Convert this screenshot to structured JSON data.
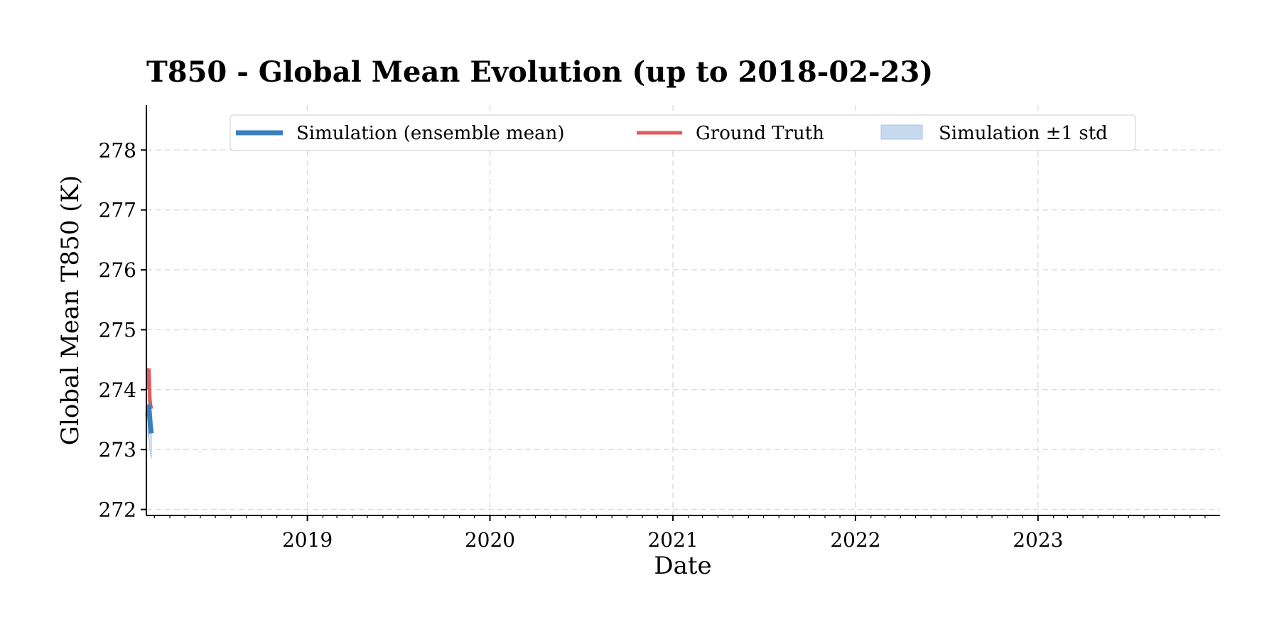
{
  "chart_data": {
    "type": "line",
    "title": "T850 - Global Mean Evolution (up to 2018-02-23)",
    "xlabel": "Date",
    "ylabel": "Global Mean T850 (K)",
    "xlim": [
      "2018-02-13",
      "2023-12-31"
    ],
    "ylim": [
      271.9,
      278.75
    ],
    "xticks": [
      "2019",
      "2020",
      "2021",
      "2022",
      "2023"
    ],
    "yticks": [
      272,
      273,
      274,
      275,
      276,
      277,
      278
    ],
    "grid": true,
    "legend": {
      "placement": "top",
      "entries": [
        "Simulation (ensemble mean)",
        "Ground Truth",
        "Simulation ±1 std"
      ]
    },
    "series": [
      {
        "name": "Simulation (ensemble mean)",
        "color": "#3a7fbd",
        "x": [
          "2018-02-16",
          "2018-02-17",
          "2018-02-18",
          "2018-02-19",
          "2018-02-20",
          "2018-02-21",
          "2018-02-22",
          "2018-02-23"
        ],
        "y": [
          273.55,
          273.75,
          273.7,
          273.6,
          273.5,
          273.4,
          273.33,
          273.27
        ]
      },
      {
        "name": "Ground Truth",
        "color": "#e05a5e",
        "x": [
          "2018-02-16",
          "2018-02-17",
          "2018-02-18",
          "2018-02-19",
          "2018-02-20",
          "2018-02-21",
          "2018-02-22",
          "2018-02-23"
        ],
        "y": [
          274.0,
          274.33,
          274.35,
          274.1,
          273.85,
          273.75,
          273.72,
          273.68
        ]
      },
      {
        "name": "Simulation ±1 std",
        "color": "#c6d9ee",
        "x": [
          "2018-02-16",
          "2018-02-17",
          "2018-02-18",
          "2018-02-19",
          "2018-02-20",
          "2018-02-21",
          "2018-02-22",
          "2018-02-23"
        ],
        "lower": [
          273.2,
          273.3,
          273.2,
          273.1,
          273.0,
          272.95,
          272.9,
          272.85
        ],
        "upper": [
          273.9,
          274.2,
          274.1,
          274.0,
          273.9,
          273.8,
          273.7,
          273.6
        ]
      }
    ]
  }
}
